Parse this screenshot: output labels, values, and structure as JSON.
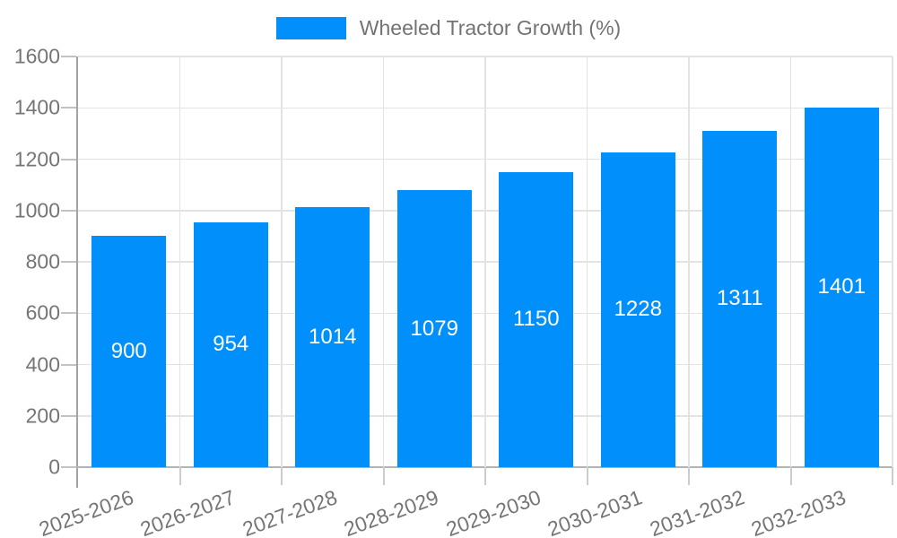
{
  "chart_data": {
    "type": "bar",
    "title": "",
    "xlabel": "",
    "ylabel": "",
    "categories": [
      "2025-2026",
      "2026-2027",
      "2027-2028",
      "2028-2029",
      "2029-2030",
      "2030-2031",
      "2031-2032",
      "2032-2033"
    ],
    "series": [
      {
        "name": "Wheeled Tractor Growth (%)",
        "color": "#008FFB",
        "values": [
          900,
          954,
          1014,
          1079,
          1150,
          1228,
          1311,
          1401
        ]
      }
    ],
    "ylim": [
      0,
      1600
    ],
    "yticks": [
      0,
      200,
      400,
      600,
      800,
      1000,
      1200,
      1400,
      1600
    ],
    "grid": true,
    "legend_position": "top-center",
    "data_labels": {
      "position": "inside-middle",
      "color": "#ffffff"
    }
  },
  "legend": {
    "label": "Wheeled Tractor Growth (%)",
    "swatch_color": "#008FFB"
  },
  "colors": {
    "background": "#ffffff",
    "bar": "#008FFB",
    "axis_text": "#757575",
    "value_label_text": "#ffffff"
  }
}
